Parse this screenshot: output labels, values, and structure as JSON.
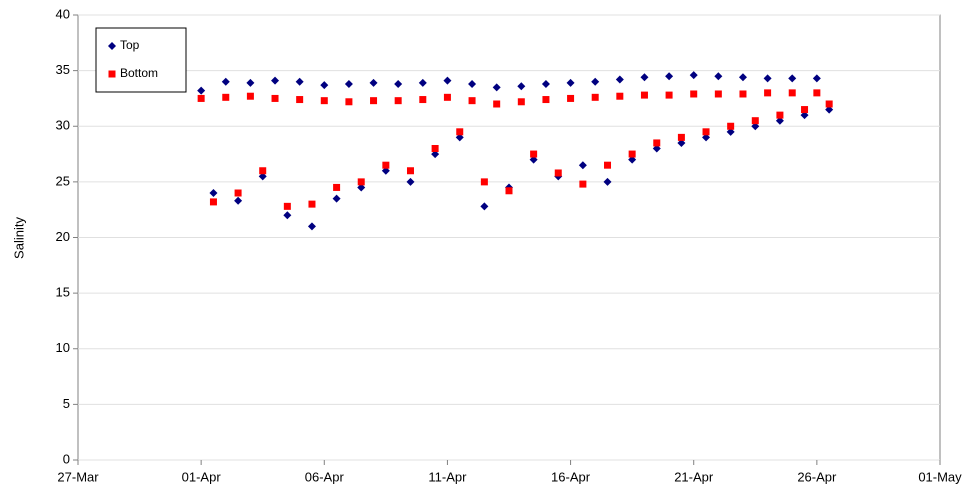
{
  "chart_data": {
    "type": "scatter",
    "y_label": "Salinity",
    "x": [
      5,
      5.5,
      6,
      6.5,
      7,
      7.5,
      8,
      8.5,
      9,
      9.5,
      10,
      10.5,
      11,
      11.5,
      12,
      12.5,
      13,
      13.5,
      14,
      14.5,
      15,
      15.5,
      16,
      16.5,
      17,
      17.5,
      18,
      18.5,
      19,
      19.5,
      20,
      20.5,
      21,
      21.5,
      22,
      22.5,
      23,
      23.5,
      24,
      24.5,
      25,
      25.5,
      26,
      26.5,
      27,
      27.5,
      28,
      28.5,
      29,
      29.5,
      30,
      30.5
    ],
    "series": [
      {
        "name": "Top",
        "color": "#000080",
        "marker": "diamond",
        "values": [
          33.2,
          24.0,
          34.0,
          23.3,
          33.9,
          25.5,
          34.1,
          22.0,
          34.0,
          21.0,
          33.7,
          23.5,
          33.8,
          24.5,
          33.9,
          26.0,
          33.8,
          25.0,
          33.9,
          27.5,
          34.1,
          29.0,
          33.8,
          22.8,
          33.5,
          24.5,
          33.6,
          27.0,
          33.8,
          25.5,
          33.9,
          26.5,
          34.0,
          25.0,
          34.2,
          27.0,
          34.4,
          28.0,
          34.5,
          28.5,
          34.6,
          29.0,
          34.5,
          29.5,
          34.4,
          30.0,
          34.3,
          30.5,
          34.3,
          31.0,
          34.3,
          31.5
        ]
      },
      {
        "name": "Bottom",
        "color": "#ff0000",
        "marker": "square",
        "values": [
          32.5,
          23.2,
          32.6,
          24.0,
          32.7,
          26.0,
          32.5,
          22.8,
          32.4,
          23.0,
          32.3,
          24.5,
          32.2,
          25.0,
          32.3,
          26.5,
          32.3,
          26.0,
          32.4,
          28.0,
          32.6,
          29.5,
          32.3,
          25.0,
          32.0,
          24.2,
          32.2,
          27.5,
          32.4,
          25.8,
          32.5,
          24.8,
          32.6,
          26.5,
          32.7,
          27.5,
          32.8,
          28.5,
          32.8,
          29.0,
          32.9,
          29.5,
          32.9,
          30.0,
          32.9,
          30.5,
          33.0,
          31.0,
          33.0,
          31.5,
          33.0,
          32.0
        ]
      }
    ],
    "xlim": [
      0,
      35
    ],
    "xticks": [
      {
        "value": 0,
        "label": "27-Mar"
      },
      {
        "value": 5,
        "label": "01-Apr"
      },
      {
        "value": 10,
        "label": "06-Apr"
      },
      {
        "value": 15,
        "label": "11-Apr"
      },
      {
        "value": 20,
        "label": "16-Apr"
      },
      {
        "value": 25,
        "label": "21-Apr"
      },
      {
        "value": 30,
        "label": "26-Apr"
      },
      {
        "value": 35,
        "label": "01-May"
      }
    ],
    "ylim": [
      0,
      40
    ],
    "yticks": [
      0,
      5,
      10,
      15,
      20,
      25,
      30,
      35,
      40
    ],
    "grid": true,
    "legend": "top-left"
  }
}
